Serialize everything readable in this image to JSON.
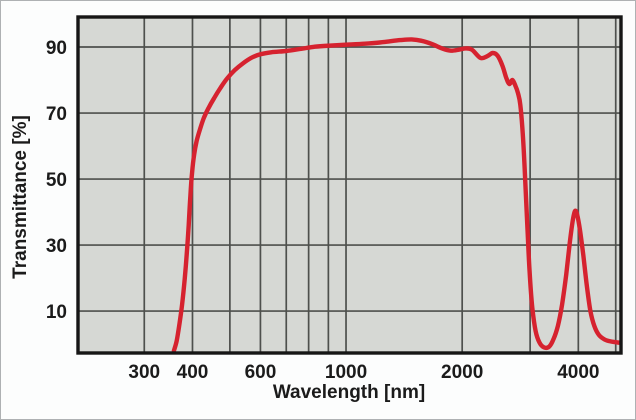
{
  "chart_data": {
    "type": "line",
    "title": "",
    "xlabel": "Wavelength [nm]",
    "ylabel": "Transmittance [%]",
    "x_scale": "log",
    "xlim": [
      202,
      5160
    ],
    "ylim": [
      -2.7,
      99.1
    ],
    "grid": true,
    "legend_position": "none",
    "x_gridlines": [
      300,
      400,
      500,
      600,
      700,
      800,
      900,
      1000,
      2000,
      3000,
      4000,
      5000
    ],
    "y_gridlines": [
      10,
      30,
      50,
      70,
      90
    ],
    "x_ticks": [
      {
        "value": 300,
        "label": "300"
      },
      {
        "value": 400,
        "label": "400"
      },
      {
        "value": 600,
        "label": "600"
      },
      {
        "value": 1000,
        "label": "1000"
      },
      {
        "value": 2000,
        "label": "2000"
      },
      {
        "value": 4000,
        "label": "4000"
      }
    ],
    "y_ticks": [
      {
        "value": 10,
        "label": "10"
      },
      {
        "value": 30,
        "label": "30"
      },
      {
        "value": 50,
        "label": "50"
      },
      {
        "value": 70,
        "label": "70"
      },
      {
        "value": 90,
        "label": "90"
      }
    ],
    "colors": {
      "plot_background": "#d6d8d4",
      "grid": "#4e504d",
      "axis_border": "#161616",
      "curve": "#d6222f",
      "text": "#1b1b1b",
      "figure_background": "#fcfdfd",
      "figure_border": "#aeb1b3"
    },
    "series": [
      {
        "name": "transmittance",
        "color": "#d6222f",
        "points": [
          [
            358,
            -2
          ],
          [
            364,
            1
          ],
          [
            370,
            6
          ],
          [
            376,
            12
          ],
          [
            382,
            20
          ],
          [
            387,
            28
          ],
          [
            391,
            36
          ],
          [
            395,
            45
          ],
          [
            399,
            52
          ],
          [
            404,
            57.5
          ],
          [
            410,
            61.5
          ],
          [
            418,
            65
          ],
          [
            428,
            68.5
          ],
          [
            440,
            71.5
          ],
          [
            455,
            74.5
          ],
          [
            472,
            77.5
          ],
          [
            492,
            80.5
          ],
          [
            515,
            83
          ],
          [
            540,
            85
          ],
          [
            570,
            86.8
          ],
          [
            600,
            87.8
          ],
          [
            640,
            88.4
          ],
          [
            700,
            88.8
          ],
          [
            760,
            89.4
          ],
          [
            830,
            90.1
          ],
          [
            900,
            90.4
          ],
          [
            1000,
            90.7
          ],
          [
            1120,
            91
          ],
          [
            1250,
            91.5
          ],
          [
            1380,
            92.1
          ],
          [
            1480,
            92.3
          ],
          [
            1570,
            91.9
          ],
          [
            1670,
            90.9
          ],
          [
            1780,
            89.5
          ],
          [
            1870,
            88.9
          ],
          [
            1960,
            89.2
          ],
          [
            2040,
            89.6
          ],
          [
            2120,
            89.2
          ],
          [
            2230,
            86.7
          ],
          [
            2320,
            87.2
          ],
          [
            2400,
            88.2
          ],
          [
            2470,
            87.4
          ],
          [
            2540,
            84.5
          ],
          [
            2600,
            80.8
          ],
          [
            2650,
            78.8
          ],
          [
            2700,
            80
          ],
          [
            2750,
            78.2
          ],
          [
            2790,
            76
          ],
          [
            2830,
            72.5
          ],
          [
            2870,
            64
          ],
          [
            2910,
            51
          ],
          [
            2950,
            36
          ],
          [
            2990,
            22
          ],
          [
            3040,
            11
          ],
          [
            3100,
            4
          ],
          [
            3170,
            0.5
          ],
          [
            3260,
            -1
          ],
          [
            3360,
            -0.8
          ],
          [
            3450,
            1.5
          ],
          [
            3540,
            5.5
          ],
          [
            3630,
            12
          ],
          [
            3720,
            21
          ],
          [
            3800,
            30.5
          ],
          [
            3870,
            37.5
          ],
          [
            3920,
            40.3
          ],
          [
            3970,
            39.3
          ],
          [
            4040,
            34.5
          ],
          [
            4120,
            27
          ],
          [
            4210,
            17.5
          ],
          [
            4300,
            10
          ],
          [
            4400,
            5.5
          ],
          [
            4520,
            2.8
          ],
          [
            4680,
            1.4
          ],
          [
            4850,
            0.8
          ],
          [
            5050,
            0.5
          ],
          [
            5160,
            0.4
          ]
        ]
      }
    ]
  }
}
